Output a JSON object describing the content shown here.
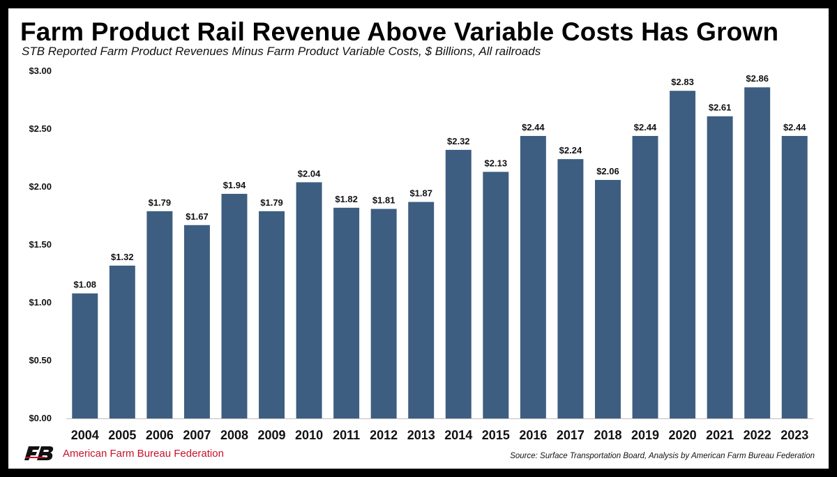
{
  "chart_data": {
    "type": "bar",
    "title": "Farm Product Rail Revenue Above Variable Costs Has Grown",
    "subtitle": "STB Reported Farm Product Revenues Minus Farm Product Variable Costs, $ Billions, All railroads",
    "categories": [
      "2004",
      "2005",
      "2006",
      "2007",
      "2008",
      "2009",
      "2010",
      "2011",
      "2012",
      "2013",
      "2014",
      "2015",
      "2016",
      "2017",
      "2018",
      "2019",
      "2020",
      "2021",
      "2022",
      "2023"
    ],
    "values": [
      1.08,
      1.32,
      1.79,
      1.67,
      1.94,
      1.79,
      2.04,
      1.82,
      1.81,
      1.87,
      2.32,
      2.13,
      2.44,
      2.24,
      2.06,
      2.44,
      2.83,
      2.61,
      2.86,
      2.44
    ],
    "data_labels": [
      "$1.08",
      "$1.32",
      "$1.79",
      "$1.67",
      "$1.94",
      "$1.79",
      "$2.04",
      "$1.82",
      "$1.81",
      "$1.87",
      "$2.32",
      "$2.13",
      "$2.44",
      "$2.24",
      "$2.06",
      "$2.44",
      "$2.83",
      "$2.61",
      "$2.86",
      "$2.44"
    ],
    "yticks": [
      0,
      0.5,
      1.0,
      1.5,
      2.0,
      2.5,
      3.0
    ],
    "ytick_labels": [
      "$0.00",
      "$0.50",
      "$1.00",
      "$1.50",
      "$2.00",
      "$2.50",
      "$3.00"
    ],
    "ylim": [
      0,
      3.0
    ],
    "xlabel": "",
    "ylabel": "",
    "grid": false,
    "legend": "none",
    "bar_color": "#3d5e80"
  },
  "footer": {
    "organization": "American Farm Bureau Federation",
    "source": "Source: Surface Transportation Board, Analysis by American Farm Bureau Federation",
    "brand_color": "#c8102e"
  }
}
